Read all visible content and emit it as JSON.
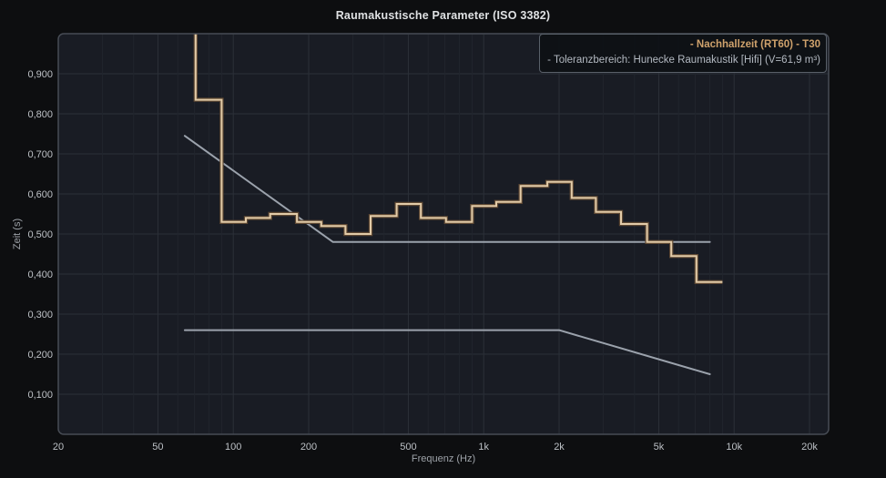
{
  "title": "Raumakustische Parameter (ISO 3382)",
  "legend": {
    "items": [
      {
        "label": "- Nachhallzeit (RT60) - T30",
        "color": "#cfa26c"
      },
      {
        "label": "- Toleranzbereich: Hunecke Raumakustik [Hifi] (V=61,9 m³)",
        "color": "#b3b9c1"
      }
    ]
  },
  "axes": {
    "x": {
      "label": "Frequenz (Hz)",
      "scale": "log",
      "ticks": [
        {
          "f": 20,
          "label": "20"
        },
        {
          "f": 50,
          "label": "50"
        },
        {
          "f": 100,
          "label": "100"
        },
        {
          "f": 200,
          "label": "200"
        },
        {
          "f": 500,
          "label": "500"
        },
        {
          "f": 1000,
          "label": "1k"
        },
        {
          "f": 2000,
          "label": "2k"
        },
        {
          "f": 5000,
          "label": "5k"
        },
        {
          "f": 10000,
          "label": "10k"
        },
        {
          "f": 20000,
          "label": "20k"
        }
      ]
    },
    "y": {
      "label": "Zeit (s)",
      "ticks": [
        {
          "v": 0.9,
          "label": "0,900"
        },
        {
          "v": 0.8,
          "label": "0,800"
        },
        {
          "v": 0.7,
          "label": "0,700"
        },
        {
          "v": 0.6,
          "label": "0,600"
        },
        {
          "v": 0.5,
          "label": "0,500"
        },
        {
          "v": 0.4,
          "label": "0,400"
        },
        {
          "v": 0.3,
          "label": "0,300"
        },
        {
          "v": 0.2,
          "label": "0,200"
        },
        {
          "v": 0.1,
          "label": "0,100"
        }
      ]
    }
  },
  "chart_data": {
    "type": "line",
    "title": "Raumakustische Parameter (ISO 3382)",
    "xlabel": "Frequenz (Hz)",
    "ylabel": "Zeit (s)",
    "x_scale": "log",
    "xlim": [
      20,
      24000
    ],
    "ylim": [
      0,
      1.0
    ],
    "grid": true,
    "legend_position": "top-right",
    "series": [
      {
        "name": "Nachhallzeit (RT60) - T30",
        "style": "step-third-octave",
        "color": "#e2cba8",
        "outline_color": "#5e4833",
        "off_scale_above_bands": [
          63
        ],
        "bands": [
          [
            63,
            1.05
          ],
          [
            80,
            0.835
          ],
          [
            100,
            0.53
          ],
          [
            125,
            0.54
          ],
          [
            160,
            0.55
          ],
          [
            200,
            0.53
          ],
          [
            250,
            0.52
          ],
          [
            315,
            0.5
          ],
          [
            400,
            0.545
          ],
          [
            500,
            0.575
          ],
          [
            630,
            0.54
          ],
          [
            800,
            0.53
          ],
          [
            1000,
            0.57
          ],
          [
            1250,
            0.58
          ],
          [
            1600,
            0.62
          ],
          [
            2000,
            0.63
          ],
          [
            2500,
            0.59
          ],
          [
            3150,
            0.555
          ],
          [
            4000,
            0.525
          ],
          [
            5000,
            0.48
          ],
          [
            6300,
            0.445
          ],
          [
            8000,
            0.38
          ]
        ]
      },
      {
        "name": "Toleranzbereich oben (Hunecke Raumakustik [Hifi], V=61,9 m³)",
        "style": "line",
        "color": "#9ba2ac",
        "points": [
          [
            64,
            0.745
          ],
          [
            250,
            0.48
          ],
          [
            8000,
            0.48
          ]
        ]
      },
      {
        "name": "Toleranzbereich unten (Hunecke Raumakustik [Hifi], V=61,9 m³)",
        "style": "line",
        "color": "#9ba2ac",
        "points": [
          [
            64,
            0.26
          ],
          [
            2000,
            0.26
          ],
          [
            8000,
            0.15
          ]
        ]
      }
    ]
  },
  "colors": {
    "outer_background": "#0d0e10",
    "plot_background": "#191c24",
    "plot_border": "#474c55",
    "grid_minor": "#21252d",
    "grid_major": "#2b3038",
    "tick_text": "#bcc0c5",
    "axis_title_text": "#9ea3a9",
    "title_text": "#dfe1e3"
  }
}
